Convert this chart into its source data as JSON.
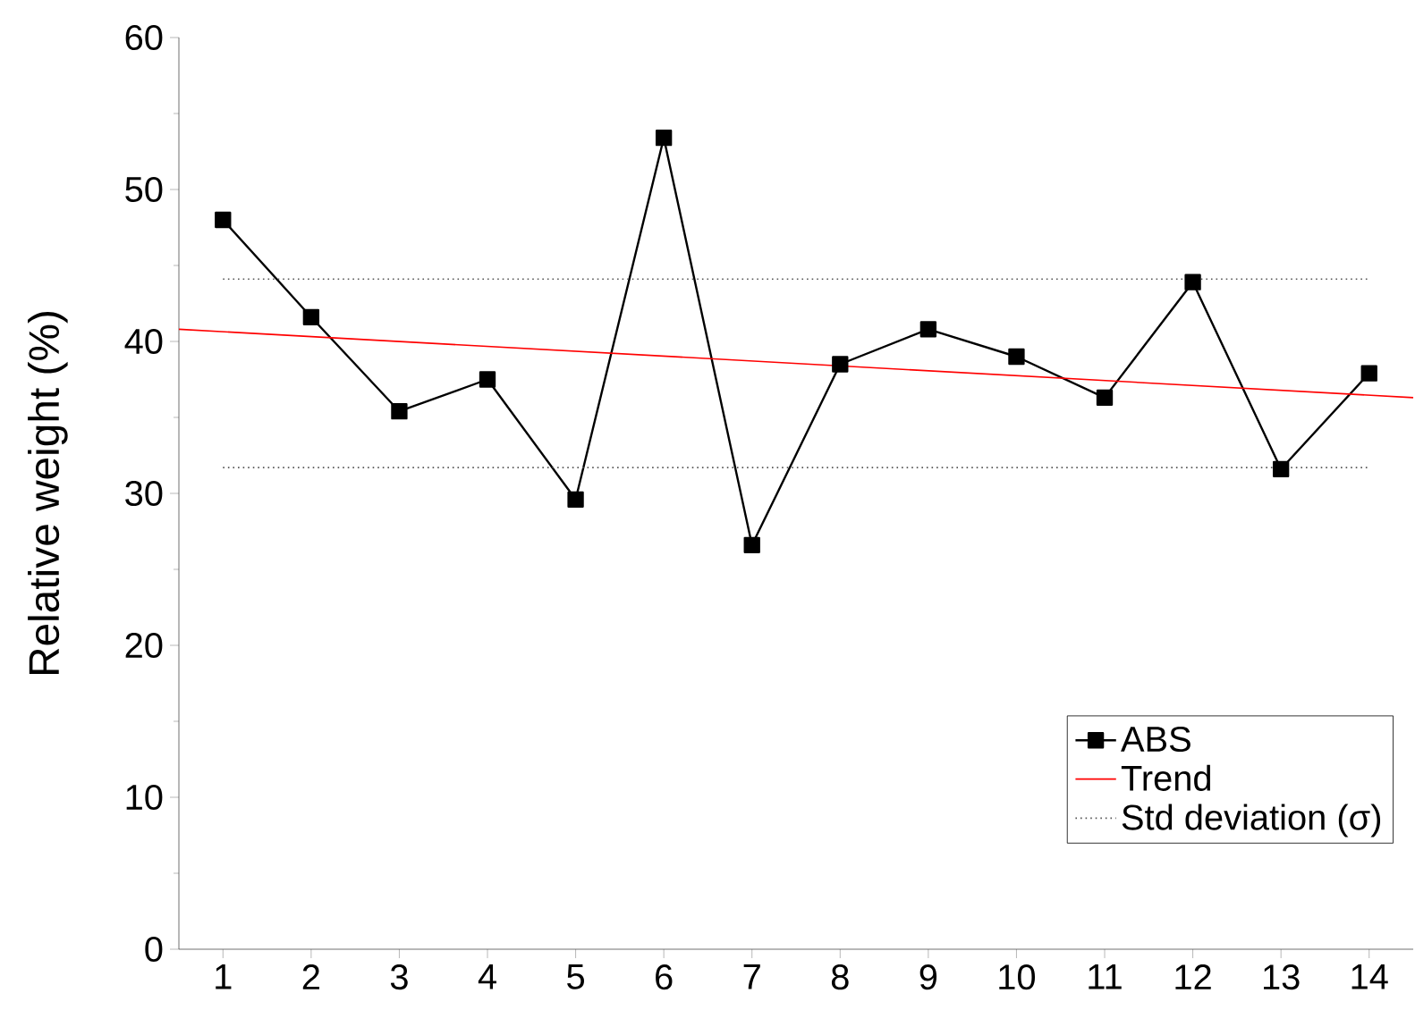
{
  "chart_data": {
    "type": "line",
    "ylabel": "Relative weight (%)",
    "x": [
      1,
      2,
      3,
      4,
      5,
      6,
      7,
      8,
      9,
      10,
      11,
      12,
      13,
      14
    ],
    "xlim": [
      0.5,
      14.5
    ],
    "xticks": [
      1,
      2,
      3,
      4,
      5,
      6,
      7,
      8,
      9,
      10,
      11,
      12,
      13,
      14
    ],
    "ylim": [
      0,
      60
    ],
    "yticks": [
      0,
      10,
      20,
      30,
      40,
      50,
      60
    ],
    "legend": "bottom right",
    "series": [
      {
        "name": "ABS",
        "color": "#000000",
        "marker": "square",
        "line_style": "solid",
        "values": [
          48.0,
          41.6,
          35.4,
          37.5,
          29.6,
          53.4,
          26.6,
          38.5,
          40.8,
          39.0,
          36.3,
          43.9,
          31.6,
          37.9
        ]
      },
      {
        "name": "Trend",
        "color": "#ff0000",
        "marker": "none",
        "line_style": "solid",
        "x": [
          0.5,
          14.5
        ],
        "values": [
          40.8,
          36.3
        ]
      },
      {
        "name": "Std deviation (σ)",
        "color": "#555555",
        "marker": "none",
        "line_style": "dotted",
        "x": [
          1,
          14
        ],
        "values": [
          44.1,
          44.1
        ]
      },
      {
        "color": "#555555",
        "marker": "none",
        "line_style": "dotted",
        "x": [
          1,
          14
        ],
        "values": [
          31.7,
          31.7
        ]
      }
    ]
  }
}
